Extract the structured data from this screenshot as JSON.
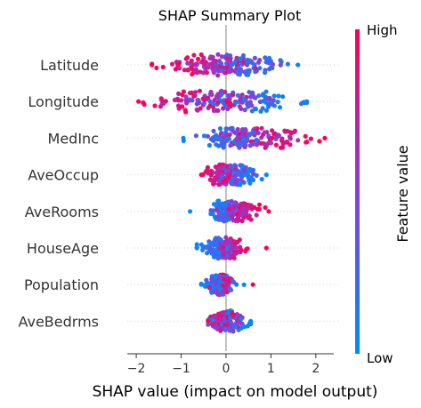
{
  "chart_data": {
    "type": "scatter",
    "title": "SHAP Summary Plot",
    "xlabel": "SHAP value (impact on model output)",
    "xlim": [
      -2.2,
      2.4
    ],
    "xticks": [
      -2,
      -1,
      0,
      1,
      2
    ],
    "features": [
      {
        "name": "Latitude",
        "low_range": [
          -0.1,
          1.6
        ],
        "high_range": [
          -1.65,
          0.3
        ],
        "min": -1.65,
        "max": 1.6,
        "low_side": "right"
      },
      {
        "name": "Longitude",
        "low_range": [
          -0.3,
          1.8
        ],
        "high_range": [
          -1.95,
          0.3
        ],
        "min": -1.95,
        "max": 1.8,
        "low_side": "right"
      },
      {
        "name": "MedInc",
        "low_range": [
          -0.95,
          0.6
        ],
        "high_range": [
          0.0,
          2.2
        ],
        "min": -0.95,
        "max": 2.2,
        "low_side": "left"
      },
      {
        "name": "AveOccup",
        "low_range": [
          -0.1,
          0.9
        ],
        "high_range": [
          -0.55,
          0.1
        ],
        "min": -0.55,
        "max": 0.9,
        "low_side": "right"
      },
      {
        "name": "AveRooms",
        "low_range": [
          -0.45,
          0.1
        ],
        "high_range": [
          0.0,
          0.95
        ],
        "min": -0.8,
        "max": 0.95,
        "low_side": "left"
      },
      {
        "name": "HouseAge",
        "low_range": [
          -0.65,
          0.05
        ],
        "high_range": [
          0.0,
          0.45
        ],
        "min": -0.65,
        "max": 0.9,
        "low_side": "left"
      },
      {
        "name": "Population",
        "low_range": [
          -0.55,
          0.2
        ],
        "high_range": [
          -0.25,
          0.15
        ],
        "min": -0.55,
        "max": 0.6,
        "low_side": "left"
      },
      {
        "name": "AveBedrms",
        "low_range": [
          -0.3,
          0.55
        ],
        "high_range": [
          -0.4,
          0.3
        ],
        "min": -0.4,
        "max": 0.55,
        "low_side": "right"
      }
    ],
    "colorbar": {
      "label": "Feature value",
      "high": "High",
      "low": "Low",
      "high_color": "#ff0052",
      "mid_color": "#7c3aed",
      "low_color": "#008bfb"
    },
    "grid": false,
    "zero_line_color": "#999999"
  }
}
